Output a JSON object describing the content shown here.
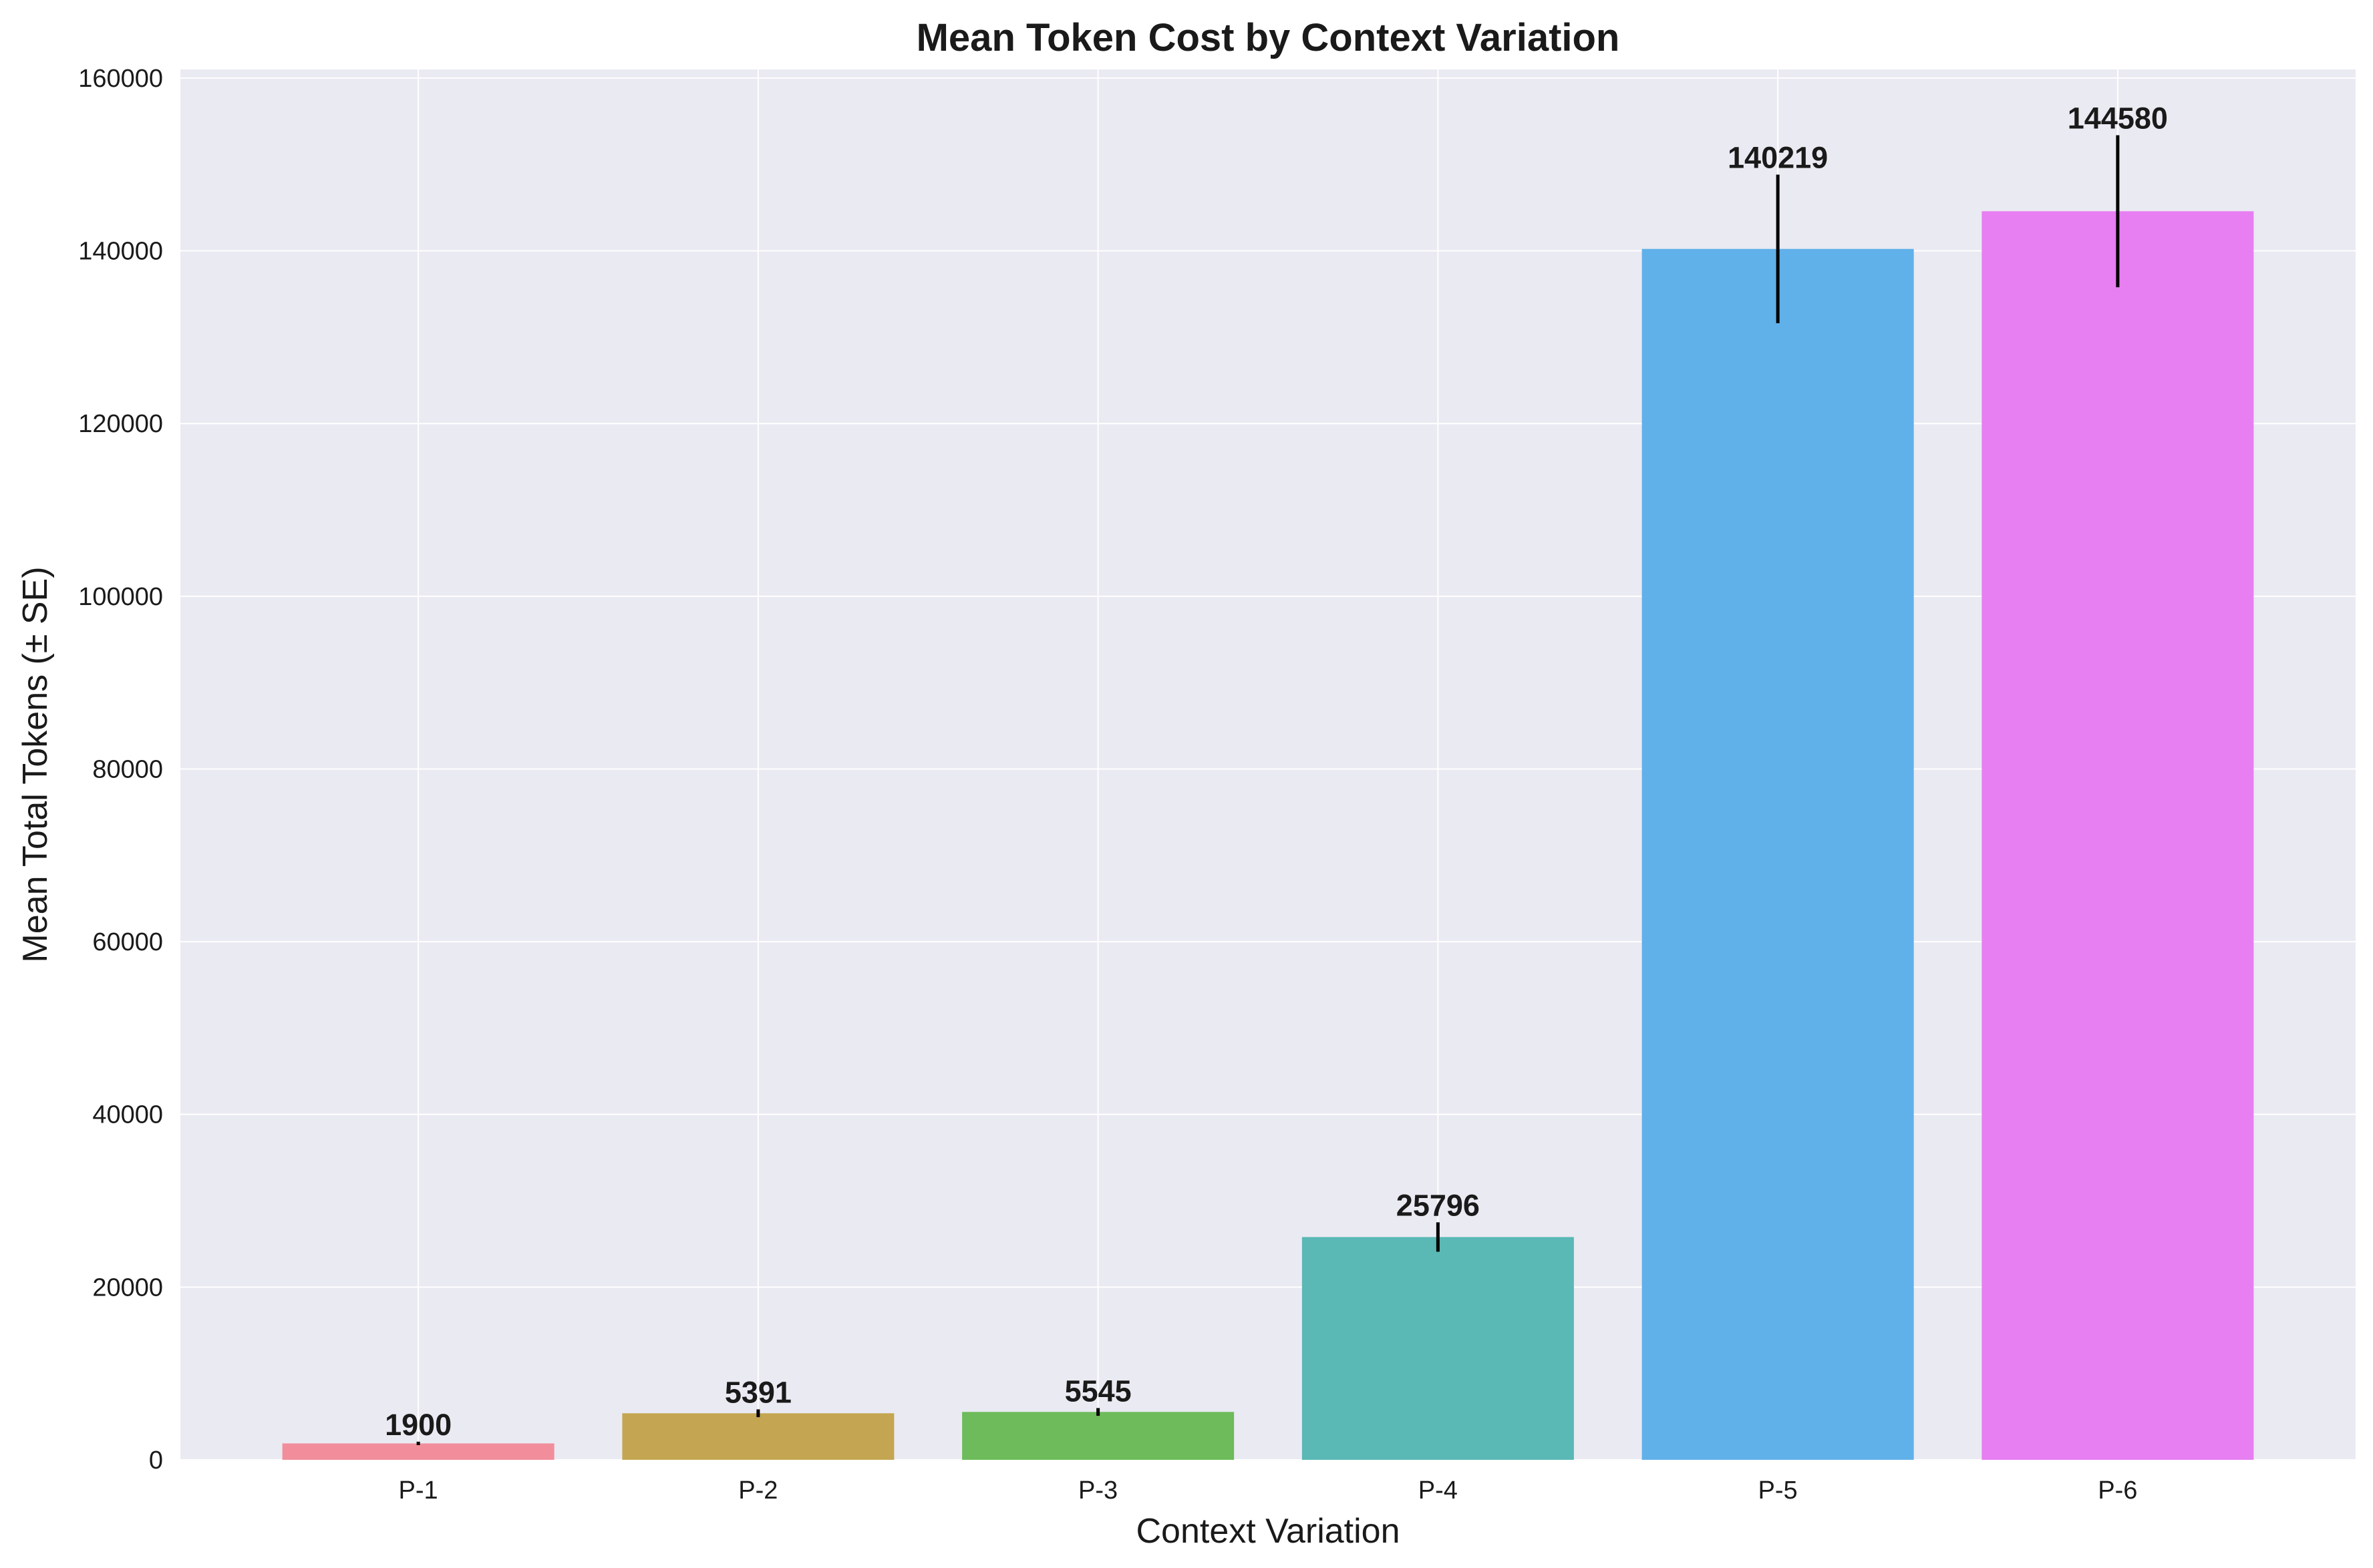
{
  "chart_data": {
    "type": "bar",
    "title": "Mean Token Cost by Context Variation",
    "xlabel": "Context Variation",
    "ylabel": "Mean Total Tokens (± SE)",
    "categories": [
      "P-1",
      "P-2",
      "P-3",
      "P-4",
      "P-5",
      "P-6"
    ],
    "values": [
      1900,
      5391,
      5545,
      25796,
      140219,
      144580
    ],
    "value_labels": [
      "1900",
      "5391",
      "5545",
      "25796",
      "140219",
      "144580"
    ],
    "errors": [
      200,
      450,
      450,
      1700,
      8600,
      8800
    ],
    "colors": [
      "#f28e9b",
      "#c4a652",
      "#6dbb5a",
      "#5ab8b5",
      "#60b0ea",
      "#e77ef2"
    ],
    "ylim": [
      0,
      161000
    ],
    "yticks": [
      0,
      20000,
      40000,
      60000,
      80000,
      100000,
      120000,
      140000,
      160000
    ],
    "ytick_labels": [
      "0",
      "20000",
      "40000",
      "60000",
      "80000",
      "100000",
      "120000",
      "140000",
      "160000"
    ],
    "grid": true,
    "background": "#eaeaf2",
    "grid_color": "#ffffff"
  }
}
